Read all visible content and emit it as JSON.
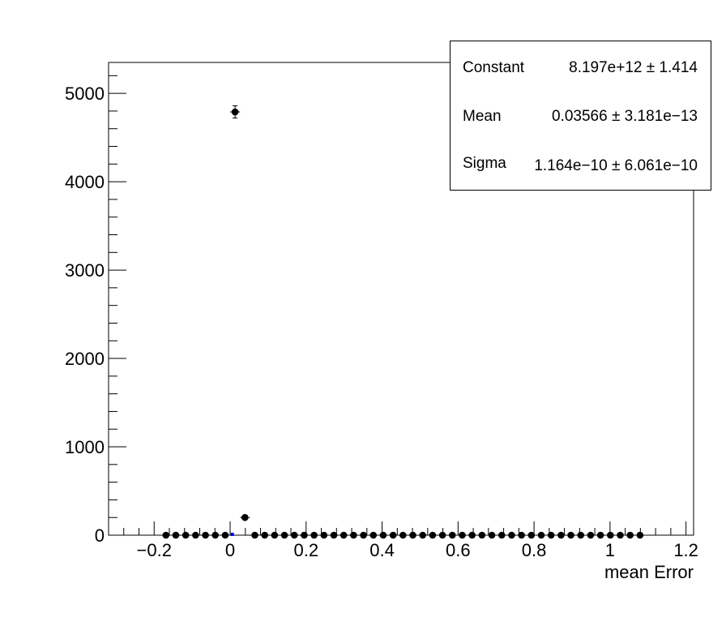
{
  "chart_data": {
    "type": "scatter",
    "xlabel": "mean Error",
    "ylabel": "",
    "xlim": [
      -0.32,
      1.22
    ],
    "ylim": [
      0,
      5350
    ],
    "x_ticks": [
      -0.2,
      0,
      0.2,
      0.4,
      0.6,
      0.8,
      1,
      1.2
    ],
    "x_tick_labels": [
      "−0.2",
      "0",
      "0.2",
      "0.4",
      "0.6",
      "0.8",
      "1",
      "1.2"
    ],
    "y_ticks": [
      0,
      1000,
      2000,
      3000,
      4000,
      5000
    ],
    "y_tick_labels": [
      "0",
      "1000",
      "2000",
      "3000",
      "4000",
      "5000"
    ],
    "grid": false,
    "bin_width": 0.026,
    "points": [
      {
        "x": -0.169,
        "y": 0
      },
      {
        "x": -0.143,
        "y": 0
      },
      {
        "x": -0.117,
        "y": 0
      },
      {
        "x": -0.091,
        "y": 0
      },
      {
        "x": -0.065,
        "y": 0
      },
      {
        "x": -0.039,
        "y": 0
      },
      {
        "x": -0.013,
        "y": 0
      },
      {
        "x": 0.013,
        "y": 4790
      },
      {
        "x": 0.039,
        "y": 200
      },
      {
        "x": 0.065,
        "y": 0
      },
      {
        "x": 0.091,
        "y": 0
      },
      {
        "x": 0.117,
        "y": 0
      },
      {
        "x": 0.143,
        "y": 0
      },
      {
        "x": 0.169,
        "y": 0
      },
      {
        "x": 0.195,
        "y": 0
      },
      {
        "x": 0.221,
        "y": 0
      },
      {
        "x": 0.247,
        "y": 0
      },
      {
        "x": 0.273,
        "y": 0
      },
      {
        "x": 0.299,
        "y": 0
      },
      {
        "x": 0.325,
        "y": 0
      },
      {
        "x": 0.351,
        "y": 0
      },
      {
        "x": 0.377,
        "y": 0
      },
      {
        "x": 0.403,
        "y": 0
      },
      {
        "x": 0.429,
        "y": 0
      },
      {
        "x": 0.455,
        "y": 0
      },
      {
        "x": 0.481,
        "y": 0
      },
      {
        "x": 0.507,
        "y": 0
      },
      {
        "x": 0.533,
        "y": 0
      },
      {
        "x": 0.559,
        "y": 0
      },
      {
        "x": 0.585,
        "y": 0
      },
      {
        "x": 0.611,
        "y": 0
      },
      {
        "x": 0.637,
        "y": 0
      },
      {
        "x": 0.663,
        "y": 0
      },
      {
        "x": 0.689,
        "y": 0
      },
      {
        "x": 0.715,
        "y": 0
      },
      {
        "x": 0.741,
        "y": 0
      },
      {
        "x": 0.767,
        "y": 0
      },
      {
        "x": 0.793,
        "y": 0
      },
      {
        "x": 0.819,
        "y": 0
      },
      {
        "x": 0.845,
        "y": 0
      },
      {
        "x": 0.871,
        "y": 0
      },
      {
        "x": 0.897,
        "y": 0
      },
      {
        "x": 0.923,
        "y": 0
      },
      {
        "x": 0.949,
        "y": 0
      },
      {
        "x": 0.975,
        "y": 0
      },
      {
        "x": 1.001,
        "y": 0
      },
      {
        "x": 1.027,
        "y": 0
      },
      {
        "x": 1.053,
        "y": 0
      },
      {
        "x": 1.079,
        "y": 0
      }
    ],
    "error_bars": [
      {
        "x": 0.013,
        "y_err": 69
      },
      {
        "x": 0.039,
        "y_err": 14
      }
    ],
    "fit_marker": {
      "x": 0.0057,
      "y": 0,
      "color": "#0000ff"
    },
    "marker_color": "#000000",
    "fit_stats": [
      {
        "name": "Constant",
        "value": "8.197e+12 ± 1.414"
      },
      {
        "name": "Mean",
        "value": "0.03566 ± 3.181e−13"
      },
      {
        "name": "Sigma",
        "value": "1.164e−10 ± 6.061e−10"
      }
    ]
  }
}
